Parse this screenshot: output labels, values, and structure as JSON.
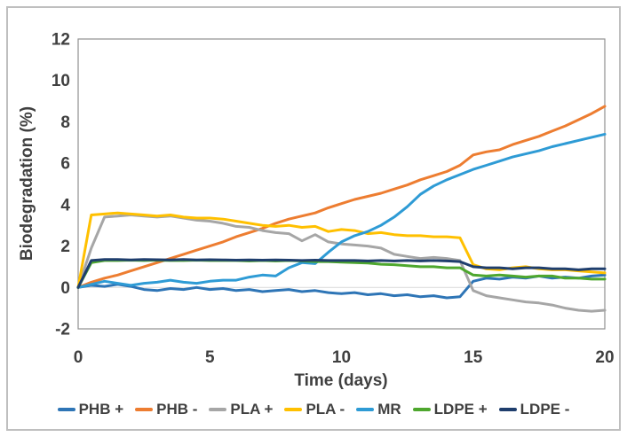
{
  "figure": {
    "background": "#FFFFFF",
    "outer_border_color": "#BFBFBF",
    "plot_border_color": "#909090",
    "gridline_color": "#D9D9D9",
    "text_color": "#404040"
  },
  "chart_data": {
    "type": "line",
    "title": "",
    "xlabel": "Time (days)",
    "ylabel": "Biodegradation (%)",
    "xlim": [
      0,
      20
    ],
    "ylim": [
      -2,
      12
    ],
    "x_ticks": [
      0,
      5,
      10,
      15,
      20
    ],
    "y_ticks": [
      -2,
      0,
      2,
      4,
      6,
      8,
      10,
      12
    ],
    "grid": "horizontal-zero-line-only",
    "legend_position": "bottom",
    "x": [
      0,
      0.5,
      1,
      1.5,
      2,
      2.5,
      3,
      3.5,
      4,
      4.5,
      5,
      5.5,
      6,
      6.5,
      7,
      7.5,
      8,
      8.5,
      9,
      9.5,
      10,
      10.5,
      11,
      11.5,
      12,
      12.5,
      13,
      13.5,
      14,
      14.5,
      15,
      15.5,
      16,
      16.5,
      17,
      17.5,
      18,
      18.5,
      19,
      19.5,
      20
    ],
    "series": [
      {
        "name": "PHB +",
        "color": "#2E75B6",
        "values": [
          0,
          0.1,
          0.05,
          0.15,
          0.05,
          -0.1,
          -0.15,
          -0.05,
          -0.1,
          0,
          -0.1,
          -0.05,
          -0.15,
          -0.1,
          -0.2,
          -0.15,
          -0.1,
          -0.2,
          -0.15,
          -0.25,
          -0.3,
          -0.25,
          -0.35,
          -0.3,
          -0.4,
          -0.35,
          -0.45,
          -0.4,
          -0.5,
          -0.45,
          0.3,
          0.45,
          0.4,
          0.5,
          0.45,
          0.55,
          0.45,
          0.5,
          0.45,
          0.55,
          0.6
        ]
      },
      {
        "name": "PHB -",
        "color": "#ED7D31",
        "values": [
          0,
          0.25,
          0.45,
          0.6,
          0.8,
          1,
          1.2,
          1.4,
          1.6,
          1.8,
          2,
          2.2,
          2.45,
          2.65,
          2.85,
          3.1,
          3.3,
          3.45,
          3.6,
          3.85,
          4.05,
          4.25,
          4.4,
          4.55,
          4.75,
          4.95,
          5.2,
          5.4,
          5.6,
          5.9,
          6.4,
          6.55,
          6.65,
          6.9,
          7.1,
          7.3,
          7.55,
          7.8,
          8.1,
          8.4,
          8.75
        ]
      },
      {
        "name": "PLA +",
        "color": "#A6A6A6",
        "values": [
          0,
          1.9,
          3.4,
          3.45,
          3.5,
          3.45,
          3.4,
          3.45,
          3.35,
          3.25,
          3.2,
          3.1,
          2.95,
          2.9,
          2.75,
          2.65,
          2.6,
          2.25,
          2.55,
          2.2,
          2.1,
          2.05,
          2,
          1.9,
          1.6,
          1.5,
          1.4,
          1.45,
          1.4,
          1.3,
          -0.15,
          -0.4,
          -0.5,
          -0.6,
          -0.7,
          -0.75,
          -0.85,
          -1,
          -1.1,
          -1.15,
          -1.1
        ]
      },
      {
        "name": "PLA -",
        "color": "#FFC000",
        "values": [
          0,
          3.5,
          3.55,
          3.6,
          3.55,
          3.5,
          3.45,
          3.5,
          3.4,
          3.35,
          3.35,
          3.3,
          3.2,
          3.1,
          3,
          2.95,
          3,
          2.9,
          2.95,
          2.7,
          2.8,
          2.75,
          2.6,
          2.65,
          2.55,
          2.5,
          2.5,
          2.45,
          2.45,
          2.4,
          1.1,
          0.9,
          0.85,
          0.95,
          1,
          0.9,
          0.85,
          0.85,
          0.8,
          0.75,
          0.7
        ]
      },
      {
        "name": "MR",
        "color": "#2E9BD5",
        "values": [
          0,
          0.15,
          0.3,
          0.2,
          0.1,
          0.2,
          0.25,
          0.35,
          0.25,
          0.2,
          0.3,
          0.35,
          0.35,
          0.5,
          0.6,
          0.55,
          0.95,
          1.2,
          1.15,
          1.7,
          2.2,
          2.5,
          2.7,
          3,
          3.4,
          3.9,
          4.5,
          4.9,
          5.2,
          5.45,
          5.7,
          5.9,
          6.1,
          6.3,
          6.45,
          6.6,
          6.8,
          6.95,
          7.1,
          7.25,
          7.4
        ]
      },
      {
        "name": "LDPE +",
        "color": "#4EA72E",
        "values": [
          0,
          1.2,
          1.3,
          1.3,
          1.32,
          1.3,
          1.32,
          1.3,
          1.3,
          1.32,
          1.3,
          1.3,
          1.3,
          1.28,
          1.3,
          1.28,
          1.3,
          1.28,
          1.25,
          1.25,
          1.22,
          1.2,
          1.18,
          1.12,
          1.1,
          1.05,
          1,
          1,
          0.95,
          0.95,
          0.6,
          0.55,
          0.6,
          0.55,
          0.5,
          0.55,
          0.55,
          0.45,
          0.45,
          0.4,
          0.4
        ]
      },
      {
        "name": "LDPE -",
        "color": "#1F3E6D",
        "values": [
          0,
          1.3,
          1.35,
          1.35,
          1.33,
          1.35,
          1.34,
          1.33,
          1.35,
          1.33,
          1.34,
          1.33,
          1.32,
          1.33,
          1.32,
          1.33,
          1.32,
          1.3,
          1.32,
          1.3,
          1.3,
          1.3,
          1.28,
          1.3,
          1.28,
          1.3,
          1.28,
          1.3,
          1.28,
          1.25,
          1,
          0.95,
          0.95,
          0.9,
          0.95,
          0.95,
          0.9,
          0.9,
          0.85,
          0.9,
          0.9
        ]
      }
    ]
  }
}
